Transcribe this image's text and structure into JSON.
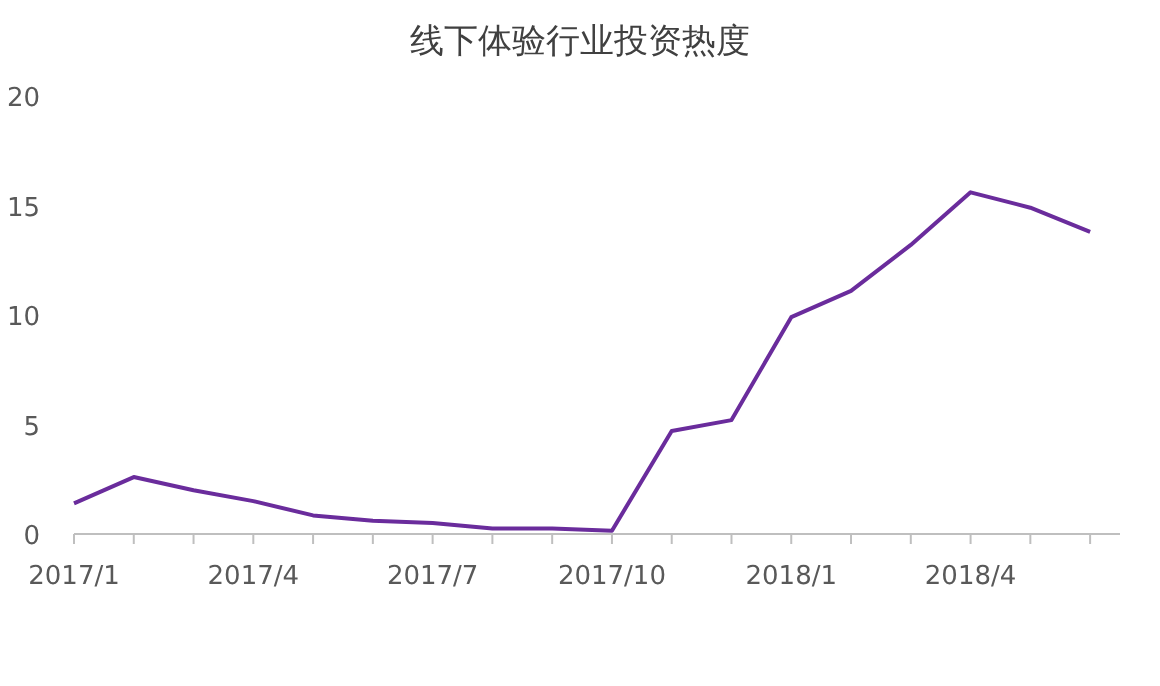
{
  "chart_data": {
    "type": "line",
    "title": "线下体验行业投资热度",
    "categories": [
      "2017/1",
      null,
      null,
      "2017/4",
      null,
      null,
      "2017/7",
      null,
      null,
      "2017/10",
      null,
      null,
      "2018/1",
      null,
      null,
      "2018/4",
      null,
      null
    ],
    "series": [
      {
        "color": "#6a2c9c",
        "values": [
          1.4,
          2.6,
          2.0,
          1.5,
          0.85,
          0.6,
          0.5,
          0.25,
          0.25,
          0.15,
          4.7,
          5.2,
          9.9,
          11.1,
          13.2,
          15.6,
          14.9,
          13.8
        ]
      }
    ],
    "ylim": [
      0,
      20
    ],
    "yticks": [
      0,
      5,
      10,
      15,
      20
    ]
  }
}
